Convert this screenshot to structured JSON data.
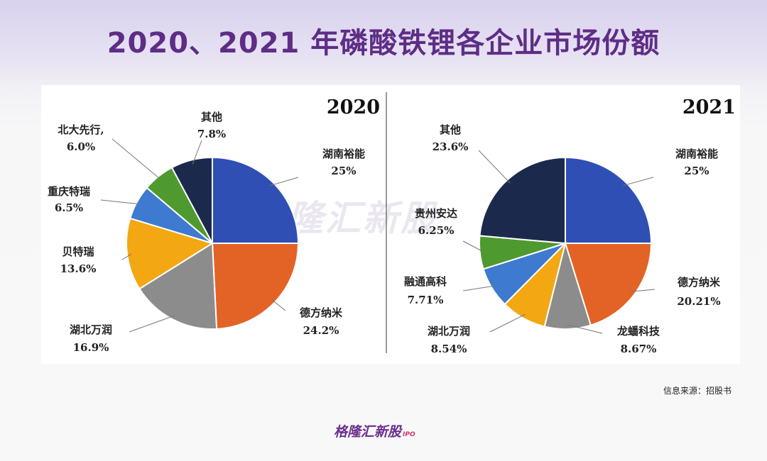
{
  "page": {
    "title": "2020、2021 年磷酸铁锂各企业市场份额",
    "source": "信息来源：招股书",
    "watermark": "格隆汇新股",
    "brand": "格隆汇新股",
    "brand_suffix": "IPO"
  },
  "chart_data": [
    {
      "type": "pie",
      "title": "2020",
      "slices": [
        {
          "name": "湖南裕能",
          "value_label": "25%",
          "value": 25,
          "color": "#2f4fb5"
        },
        {
          "name": "德方纳米",
          "value_label": "24.2%",
          "value": 24.2,
          "color": "#e26325"
        },
        {
          "name": "湖北万润",
          "value_label": "16.9%",
          "value": 16.9,
          "color": "#8c8c8c"
        },
        {
          "name": "贝特瑞",
          "value_label": "13.6%",
          "value": 13.6,
          "color": "#f3a712"
        },
        {
          "name": "重庆特瑞",
          "value_label": "6.5%",
          "value": 6.5,
          "color": "#3d7ad0"
        },
        {
          "name": "北大先行,",
          "value_label": "6.0%",
          "value": 6.0,
          "color": "#4e9a2e"
        },
        {
          "name": "其他",
          "value_label": "7.8%",
          "value": 7.8,
          "color": "#1b2a4c"
        }
      ]
    },
    {
      "type": "pie",
      "title": "2021",
      "slices": [
        {
          "name": "湖南裕能",
          "value_label": "25%",
          "value": 25,
          "color": "#2f4fb5"
        },
        {
          "name": "德方纳米",
          "value_label": "20.21%",
          "value": 20.21,
          "color": "#e26325"
        },
        {
          "name": "龙蟠科技",
          "value_label": "8.67%",
          "value": 8.67,
          "color": "#8c8c8c"
        },
        {
          "name": "湖北万润",
          "value_label": "8.54%",
          "value": 8.54,
          "color": "#f3a712"
        },
        {
          "name": "融通高科",
          "value_label": "7.71%",
          "value": 7.71,
          "color": "#3d7ad0"
        },
        {
          "name": "贵州安达",
          "value_label": "6.25%",
          "value": 6.25,
          "color": "#4e9a2e"
        },
        {
          "name": "其他",
          "value_label": "23.6%",
          "value": 23.6,
          "color": "#1b2a4c"
        }
      ]
    }
  ]
}
